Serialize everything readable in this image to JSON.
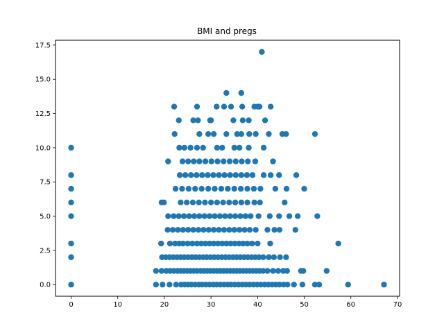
{
  "chart_data": {
    "type": "scatter",
    "title": "BMI and pregs",
    "xlabel": "",
    "ylabel": "",
    "xlim": [
      -3.35,
      70.45
    ],
    "ylim": [
      -0.85,
      17.85
    ],
    "x_ticks": [
      0,
      10,
      20,
      30,
      40,
      50,
      60,
      70
    ],
    "x_tick_labels": [
      "0",
      "10",
      "20",
      "30",
      "40",
      "50",
      "60",
      "70"
    ],
    "y_ticks": [
      0.0,
      2.5,
      5.0,
      7.5,
      10.0,
      12.5,
      15.0,
      17.5
    ],
    "y_tick_labels": [
      "0.0",
      "2.5",
      "5.0",
      "7.5",
      "10.0",
      "12.5",
      "15.0",
      "17.5"
    ],
    "grid": false,
    "marker_color": "#1f77b4",
    "series": [
      {
        "points": [
          [
            0,
            0
          ],
          [
            0,
            2
          ],
          [
            0,
            3
          ],
          [
            0,
            5
          ],
          [
            0,
            6
          ],
          [
            0,
            7
          ],
          [
            0,
            8
          ],
          [
            0,
            10
          ],
          [
            18.2,
            0
          ],
          [
            19.6,
            0
          ],
          [
            21.1,
            0
          ],
          [
            22.5,
            0
          ],
          [
            23.6,
            0
          ],
          [
            24.4,
            0
          ],
          [
            25.1,
            0
          ],
          [
            25.8,
            0
          ],
          [
            26.6,
            0
          ],
          [
            27.4,
            0
          ],
          [
            28.1,
            0
          ],
          [
            28.9,
            0
          ],
          [
            29.7,
            0
          ],
          [
            30.5,
            0
          ],
          [
            31.2,
            0
          ],
          [
            32,
            0
          ],
          [
            32.8,
            0
          ],
          [
            33.6,
            0
          ],
          [
            34.3,
            0
          ],
          [
            35.1,
            0
          ],
          [
            35.9,
            0
          ],
          [
            36.7,
            0
          ],
          [
            37.5,
            0
          ],
          [
            38.3,
            0
          ],
          [
            39.1,
            0
          ],
          [
            39.9,
            0
          ],
          [
            40.7,
            0
          ],
          [
            41.5,
            0
          ],
          [
            42.3,
            0
          ],
          [
            43.1,
            0
          ],
          [
            43.9,
            0
          ],
          [
            44.7,
            0
          ],
          [
            45.6,
            0
          ],
          [
            46.4,
            0
          ],
          [
            47.8,
            0
          ],
          [
            49.6,
            0
          ],
          [
            52.3,
            0
          ],
          [
            53.2,
            0
          ],
          [
            59.4,
            0
          ],
          [
            67.1,
            0
          ],
          [
            18.2,
            1
          ],
          [
            19.4,
            1
          ],
          [
            20.4,
            1
          ],
          [
            21.2,
            1
          ],
          [
            22,
            1
          ],
          [
            22.8,
            1
          ],
          [
            23.5,
            1
          ],
          [
            24.2,
            1
          ],
          [
            24.9,
            1
          ],
          [
            25.6,
            1
          ],
          [
            26.3,
            1
          ],
          [
            27,
            1
          ],
          [
            27.8,
            1
          ],
          [
            28.5,
            1
          ],
          [
            29.2,
            1
          ],
          [
            29.9,
            1
          ],
          [
            30.6,
            1
          ],
          [
            31.3,
            1
          ],
          [
            32,
            1
          ],
          [
            32.7,
            1
          ],
          [
            33.4,
            1
          ],
          [
            34.1,
            1
          ],
          [
            34.8,
            1
          ],
          [
            35.5,
            1
          ],
          [
            36.2,
            1
          ],
          [
            36.9,
            1
          ],
          [
            37.6,
            1
          ],
          [
            38.3,
            1
          ],
          [
            39,
            1
          ],
          [
            39.7,
            1
          ],
          [
            40.4,
            1
          ],
          [
            41.2,
            1
          ],
          [
            42.1,
            1
          ],
          [
            43.3,
            1
          ],
          [
            44.4,
            1
          ],
          [
            45.5,
            1
          ],
          [
            46.3,
            1
          ],
          [
            49.3,
            1
          ],
          [
            49.8,
            1
          ],
          [
            54.8,
            1
          ],
          [
            19.5,
            2
          ],
          [
            20.3,
            2
          ],
          [
            21.1,
            2
          ],
          [
            21.9,
            2
          ],
          [
            22.7,
            2
          ],
          [
            23.5,
            2
          ],
          [
            24.3,
            2
          ],
          [
            25.1,
            2
          ],
          [
            25.9,
            2
          ],
          [
            26.7,
            2
          ],
          [
            27.5,
            2
          ],
          [
            28.3,
            2
          ],
          [
            29.1,
            2
          ],
          [
            29.9,
            2
          ],
          [
            30.7,
            2
          ],
          [
            31.5,
            2
          ],
          [
            32.3,
            2
          ],
          [
            33.1,
            2
          ],
          [
            33.9,
            2
          ],
          [
            34.7,
            2
          ],
          [
            35.5,
            2
          ],
          [
            36.3,
            2
          ],
          [
            37.1,
            2
          ],
          [
            37.9,
            2
          ],
          [
            38.7,
            2
          ],
          [
            39.5,
            2
          ],
          [
            40.3,
            2
          ],
          [
            41.2,
            2
          ],
          [
            42.4,
            2
          ],
          [
            43.5,
            2
          ],
          [
            44.8,
            2
          ],
          [
            46.1,
            2
          ],
          [
            19.3,
            3
          ],
          [
            21.2,
            3
          ],
          [
            22.3,
            3
          ],
          [
            23.2,
            3
          ],
          [
            24,
            3
          ],
          [
            25,
            3
          ],
          [
            26,
            3
          ],
          [
            27,
            3
          ],
          [
            27.9,
            3
          ],
          [
            28.8,
            3
          ],
          [
            29.7,
            3
          ],
          [
            30.6,
            3
          ],
          [
            31.5,
            3
          ],
          [
            32.4,
            3
          ],
          [
            33.3,
            3
          ],
          [
            34.2,
            3
          ],
          [
            35.1,
            3
          ],
          [
            36,
            3
          ],
          [
            36.9,
            3
          ],
          [
            37.8,
            3
          ],
          [
            38.8,
            3
          ],
          [
            40,
            3
          ],
          [
            42.7,
            3
          ],
          [
            57.3,
            3
          ],
          [
            20.7,
            4
          ],
          [
            21.8,
            4
          ],
          [
            22.9,
            4
          ],
          [
            24,
            4
          ],
          [
            25.1,
            4
          ],
          [
            26.2,
            4
          ],
          [
            27.3,
            4
          ],
          [
            28.4,
            4
          ],
          [
            29.5,
            4
          ],
          [
            30.6,
            4
          ],
          [
            31.7,
            4
          ],
          [
            32.8,
            4
          ],
          [
            33.9,
            4
          ],
          [
            35,
            4
          ],
          [
            36.1,
            4
          ],
          [
            37.2,
            4
          ],
          [
            38.3,
            4
          ],
          [
            39.6,
            4
          ],
          [
            42.1,
            4
          ],
          [
            43.6,
            4
          ],
          [
            44.7,
            4
          ],
          [
            48.1,
            4
          ],
          [
            20.8,
            5
          ],
          [
            22,
            5
          ],
          [
            23.1,
            5
          ],
          [
            24.2,
            5
          ],
          [
            25.3,
            5
          ],
          [
            26.4,
            5
          ],
          [
            27.5,
            5
          ],
          [
            28.6,
            5
          ],
          [
            29.7,
            5
          ],
          [
            30.8,
            5
          ],
          [
            31.9,
            5
          ],
          [
            33,
            5
          ],
          [
            34.1,
            5
          ],
          [
            35.2,
            5
          ],
          [
            36.3,
            5
          ],
          [
            37.4,
            5
          ],
          [
            38.5,
            5
          ],
          [
            40.2,
            5
          ],
          [
            42.6,
            5
          ],
          [
            44.6,
            5
          ],
          [
            46.8,
            5
          ],
          [
            48.6,
            5
          ],
          [
            52.8,
            5
          ],
          [
            19.4,
            6
          ],
          [
            19.9,
            6
          ],
          [
            23.5,
            6
          ],
          [
            24.8,
            6
          ],
          [
            26.1,
            6
          ],
          [
            27.4,
            6
          ],
          [
            28.7,
            6
          ],
          [
            30,
            6
          ],
          [
            31.3,
            6
          ],
          [
            32.6,
            6
          ],
          [
            33.9,
            6
          ],
          [
            35.2,
            6
          ],
          [
            36.5,
            6
          ],
          [
            37.8,
            6
          ],
          [
            39.3,
            6
          ],
          [
            40.5,
            6
          ],
          [
            45.8,
            6
          ],
          [
            22.4,
            7
          ],
          [
            23.8,
            7
          ],
          [
            25.2,
            7
          ],
          [
            26.6,
            7
          ],
          [
            28,
            7
          ],
          [
            29.4,
            7
          ],
          [
            30.8,
            7
          ],
          [
            32.2,
            7
          ],
          [
            33.6,
            7
          ],
          [
            35,
            7
          ],
          [
            36.4,
            7
          ],
          [
            37.8,
            7
          ],
          [
            39.2,
            7
          ],
          [
            40.6,
            7
          ],
          [
            43.8,
            7
          ],
          [
            46.2,
            7
          ],
          [
            50.0,
            7
          ],
          [
            23.3,
            8
          ],
          [
            24.5,
            8
          ],
          [
            25.7,
            8
          ],
          [
            26.9,
            8
          ],
          [
            28.1,
            8
          ],
          [
            29.3,
            8
          ],
          [
            30.5,
            8
          ],
          [
            31.7,
            8
          ],
          [
            32.9,
            8
          ],
          [
            34.1,
            8
          ],
          [
            35.3,
            8
          ],
          [
            36.5,
            8
          ],
          [
            37.7,
            8
          ],
          [
            38.9,
            8
          ],
          [
            41.3,
            8
          ],
          [
            42.8,
            8
          ],
          [
            44.6,
            8
          ],
          [
            48.3,
            8
          ],
          [
            20.8,
            9
          ],
          [
            23.9,
            9
          ],
          [
            25.1,
            9
          ],
          [
            26.3,
            9
          ],
          [
            27.5,
            9
          ],
          [
            28.8,
            9
          ],
          [
            30.1,
            9
          ],
          [
            31.4,
            9
          ],
          [
            32.7,
            9
          ],
          [
            34,
            9
          ],
          [
            35.3,
            9
          ],
          [
            36.6,
            9
          ],
          [
            37.9,
            9
          ],
          [
            39.5,
            9
          ],
          [
            43.3,
            9
          ],
          [
            23.2,
            10
          ],
          [
            24.3,
            10
          ],
          [
            25.6,
            10
          ],
          [
            27,
            10
          ],
          [
            28.3,
            10
          ],
          [
            31.3,
            10
          ],
          [
            32.4,
            10
          ],
          [
            35,
            10
          ],
          [
            36.1,
            10
          ],
          [
            38.1,
            10
          ],
          [
            41.3,
            10
          ],
          [
            22.2,
            11
          ],
          [
            27.5,
            11
          ],
          [
            29.4,
            11
          ],
          [
            30.6,
            11
          ],
          [
            33.3,
            11
          ],
          [
            35.6,
            11
          ],
          [
            36.5,
            11
          ],
          [
            38.2,
            11
          ],
          [
            39.6,
            11
          ],
          [
            42.4,
            11
          ],
          [
            45.3,
            11
          ],
          [
            46.1,
            11
          ],
          [
            52.3,
            11
          ],
          [
            23.1,
            12
          ],
          [
            26.2,
            12
          ],
          [
            27.2,
            12
          ],
          [
            29.8,
            12
          ],
          [
            30,
            12
          ],
          [
            34.8,
            12
          ],
          [
            36.8,
            12
          ],
          [
            38.1,
            12
          ],
          [
            41.6,
            12
          ],
          [
            22.1,
            13
          ],
          [
            27,
            13
          ],
          [
            31.2,
            13
          ],
          [
            32.8,
            13
          ],
          [
            34.3,
            13
          ],
          [
            36.7,
            13
          ],
          [
            39.3,
            13
          ],
          [
            40,
            13
          ],
          [
            40.4,
            13
          ],
          [
            42.8,
            13
          ],
          [
            33.3,
            14
          ],
          [
            36.5,
            14
          ],
          [
            40.9,
            17
          ]
        ]
      }
    ]
  }
}
